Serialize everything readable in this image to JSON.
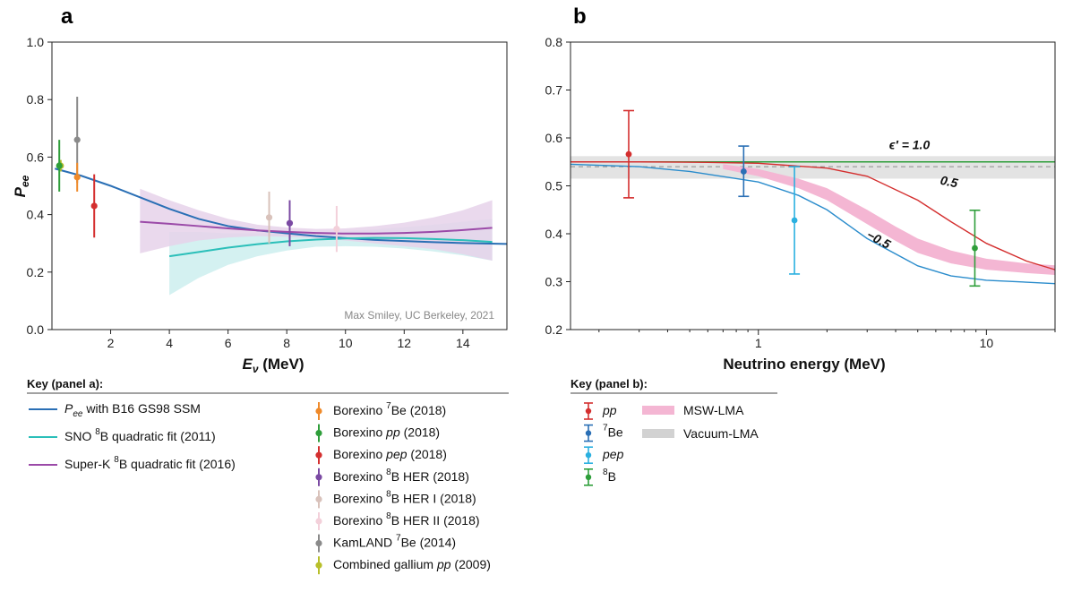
{
  "chart_data": [
    {
      "panel": "a",
      "type": "scatter",
      "xlabel_main": "E",
      "xlabel_sub": "ν",
      "xlabel_unit": " (MeV)",
      "ylabel_main": "P",
      "ylabel_sub": "ee",
      "xlim": [
        0,
        15.5
      ],
      "ylim": [
        0,
        1.0
      ],
      "xticks": [
        2,
        4,
        6,
        8,
        10,
        12,
        14
      ],
      "yticks": [
        0.0,
        0.2,
        0.4,
        0.6,
        0.8,
        1.0
      ],
      "credit": "Max Smiley, UC Berkeley, 2021",
      "curves": [
        {
          "key": "ssm",
          "x": [
            0.1,
            1,
            2,
            3,
            4,
            5,
            6,
            7,
            8,
            9,
            10,
            11,
            12,
            13,
            14,
            15.5
          ],
          "y": [
            0.56,
            0.535,
            0.5,
            0.46,
            0.42,
            0.385,
            0.36,
            0.345,
            0.335,
            0.325,
            0.318,
            0.312,
            0.308,
            0.304,
            0.301,
            0.298
          ],
          "color": "#2a6fb5"
        },
        {
          "key": "sno",
          "x": [
            4,
            5,
            6,
            7,
            8,
            9,
            10,
            11,
            12,
            13,
            14,
            15
          ],
          "y": [
            0.255,
            0.27,
            0.285,
            0.297,
            0.307,
            0.313,
            0.317,
            0.319,
            0.318,
            0.315,
            0.311,
            0.305
          ],
          "lo": [
            0.12,
            0.18,
            0.225,
            0.255,
            0.275,
            0.288,
            0.29,
            0.288,
            0.282,
            0.272,
            0.258,
            0.24
          ],
          "hi": [
            0.34,
            0.34,
            0.335,
            0.335,
            0.335,
            0.338,
            0.342,
            0.348,
            0.356,
            0.365,
            0.375,
            0.385
          ],
          "color": "#2bbfb9",
          "fill": "#cdeeee"
        },
        {
          "key": "superk",
          "x": [
            3,
            4,
            5,
            6,
            7,
            8,
            9,
            10,
            11,
            12,
            13,
            14,
            15
          ],
          "y": [
            0.375,
            0.368,
            0.36,
            0.352,
            0.345,
            0.34,
            0.336,
            0.334,
            0.334,
            0.336,
            0.34,
            0.346,
            0.354
          ],
          "lo": [
            0.265,
            0.29,
            0.31,
            0.32,
            0.325,
            0.323,
            0.318,
            0.31,
            0.3,
            0.29,
            0.28,
            0.262,
            0.24
          ],
          "hi": [
            0.49,
            0.45,
            0.415,
            0.385,
            0.365,
            0.355,
            0.35,
            0.352,
            0.36,
            0.372,
            0.39,
            0.415,
            0.45
          ],
          "color": "#9b4aa8",
          "fill": "#e6d2ea"
        }
      ],
      "points": [
        {
          "key": "gallium",
          "x": 0.3,
          "y": 0.57,
          "lo": 0.55,
          "hi": 0.59,
          "color": "#b8bf2a"
        },
        {
          "key": "bxpp",
          "x": 0.25,
          "y": 0.57,
          "lo": 0.48,
          "hi": 0.66,
          "color": "#2e9e3a"
        },
        {
          "key": "kam",
          "x": 0.86,
          "y": 0.66,
          "lo": 0.51,
          "hi": 0.81,
          "color": "#8a8a8a"
        },
        {
          "key": "bx7be",
          "x": 0.86,
          "y": 0.53,
          "lo": 0.48,
          "hi": 0.58,
          "color": "#ef8a2a"
        },
        {
          "key": "bxpep",
          "x": 1.44,
          "y": 0.43,
          "lo": 0.32,
          "hi": 0.54,
          "color": "#d42f2f"
        },
        {
          "key": "bxher1",
          "x": 7.4,
          "y": 0.39,
          "lo": 0.3,
          "hi": 0.48,
          "color": "#d9c2bb"
        },
        {
          "key": "bxher",
          "x": 8.1,
          "y": 0.37,
          "lo": 0.29,
          "hi": 0.45,
          "color": "#7b4aa3"
        },
        {
          "key": "bxher2",
          "x": 9.7,
          "y": 0.35,
          "lo": 0.27,
          "hi": 0.43,
          "color": "#f3d0da"
        }
      ]
    },
    {
      "panel": "b",
      "type": "scatter",
      "xscale": "log",
      "xlabel": "Neutrino energy (MeV)",
      "xlim": [
        0.15,
        20
      ],
      "ylim": [
        0.2,
        0.8
      ],
      "xticks": [
        1,
        10
      ],
      "yticks": [
        0.2,
        0.3,
        0.4,
        0.5,
        0.6,
        0.7,
        0.8
      ],
      "vacuum_band": [
        0.515,
        0.562
      ],
      "vacuum_line": 0.54,
      "curves": [
        {
          "key": "eps1",
          "x": [
            0.15,
            20
          ],
          "y": [
            0.55,
            0.55
          ],
          "color": "#2e9e3a"
        },
        {
          "key": "eps05",
          "x": [
            0.15,
            0.3,
            0.6,
            1,
            2,
            3,
            5,
            7,
            10,
            15,
            20
          ],
          "y": [
            0.55,
            0.55,
            0.549,
            0.547,
            0.537,
            0.52,
            0.47,
            0.425,
            0.38,
            0.343,
            0.325
          ],
          "color": "#d42f2f"
        },
        {
          "key": "epsm05",
          "x": [
            0.15,
            0.3,
            0.5,
            1,
            1.5,
            2,
            3,
            5,
            7,
            10,
            20
          ],
          "y": [
            0.545,
            0.54,
            0.53,
            0.508,
            0.48,
            0.45,
            0.39,
            0.333,
            0.312,
            0.303,
            0.296
          ],
          "color": "#2a8ccc"
        }
      ],
      "msw_band": {
        "x": [
          0.7,
          1,
          1.5,
          2,
          3,
          4,
          5,
          7,
          10,
          15,
          20
        ],
        "lo": [
          0.535,
          0.52,
          0.495,
          0.47,
          0.42,
          0.385,
          0.36,
          0.338,
          0.325,
          0.318,
          0.314
        ],
        "hi": [
          0.545,
          0.535,
          0.515,
          0.495,
          0.45,
          0.415,
          0.39,
          0.365,
          0.348,
          0.338,
          0.334
        ],
        "color": "#f4b6d3"
      },
      "annotations": [
        {
          "text": "ϵ′ = 1.0",
          "x": 4.6,
          "y": 0.577
        },
        {
          "text": "0.5",
          "x": 6.8,
          "y": 0.5,
          "rotate": 12
        },
        {
          "text": "−0.5",
          "x": 3.3,
          "y": 0.38,
          "rotate": 28
        }
      ],
      "points": [
        {
          "key": "pp",
          "x": 0.27,
          "y": 0.566,
          "lo": 0.475,
          "hi": 0.657,
          "color": "#d42f2f"
        },
        {
          "key": "be7",
          "x": 0.862,
          "y": 0.53,
          "lo": 0.478,
          "hi": 0.583,
          "color": "#2a6fb5"
        },
        {
          "key": "pep",
          "x": 1.44,
          "y": 0.428,
          "lo": 0.316,
          "hi": 0.54,
          "color": "#2ab0e0"
        },
        {
          "key": "b8",
          "x": 8.9,
          "y": 0.37,
          "lo": 0.291,
          "hi": 0.449,
          "color": "#2e9e3a"
        }
      ]
    }
  ],
  "key_a": {
    "title": "Key (panel a):",
    "lines": [
      {
        "color": "#2a6fb5",
        "pre": "P",
        "sub": "ee",
        "post": " with B16 GS98 SSM"
      },
      {
        "color": "#2bbfb9",
        "pre": "SNO ",
        "sup": "8",
        "post": "B quadratic fit (2011)"
      },
      {
        "color": "#9b4aa8",
        "pre": "Super-K ",
        "sup": "8",
        "post": "B quadratic fit (2016)"
      }
    ],
    "points": [
      {
        "color": "#ef8a2a",
        "pre": "Borexino ",
        "sup": "7",
        "post": "Be (2018)"
      },
      {
        "color": "#2e9e3a",
        "pre": "Borexino ",
        "ital": "pp",
        "post": " (2018)"
      },
      {
        "color": "#d42f2f",
        "pre": "Borexino ",
        "ital": "pep",
        "post": " (2018)"
      },
      {
        "color": "#7b4aa3",
        "pre": "Borexino ",
        "sup": "8",
        "post": "B HER (2018)"
      },
      {
        "color": "#d9c2bb",
        "pre": "Borexino ",
        "sup": "8",
        "post": "B HER I (2018)"
      },
      {
        "color": "#f3d0da",
        "pre": "Borexino ",
        "sup": "8",
        "post": "B HER II (2018)"
      },
      {
        "color": "#8a8a8a",
        "pre": "KamLAND ",
        "sup": "7",
        "post": "Be (2014)"
      },
      {
        "color": "#b8bf2a",
        "pre": "Combined gallium ",
        "ital": "pp",
        "post": " (2009)"
      }
    ]
  },
  "key_b": {
    "title": "Key (panel b):",
    "points": [
      {
        "color": "#d42f2f",
        "ital": "pp"
      },
      {
        "color": "#2a6fb5",
        "sup": "7",
        "post": "Be"
      },
      {
        "color": "#2ab0e0",
        "ital": "pep"
      },
      {
        "color": "#2e9e3a",
        "sup": "8",
        "post": "B"
      }
    ],
    "bands": [
      {
        "color": "#f4b6d3",
        "label": "MSW-LMA"
      },
      {
        "color": "#d2d2d2",
        "label": "Vacuum-LMA"
      }
    ]
  }
}
